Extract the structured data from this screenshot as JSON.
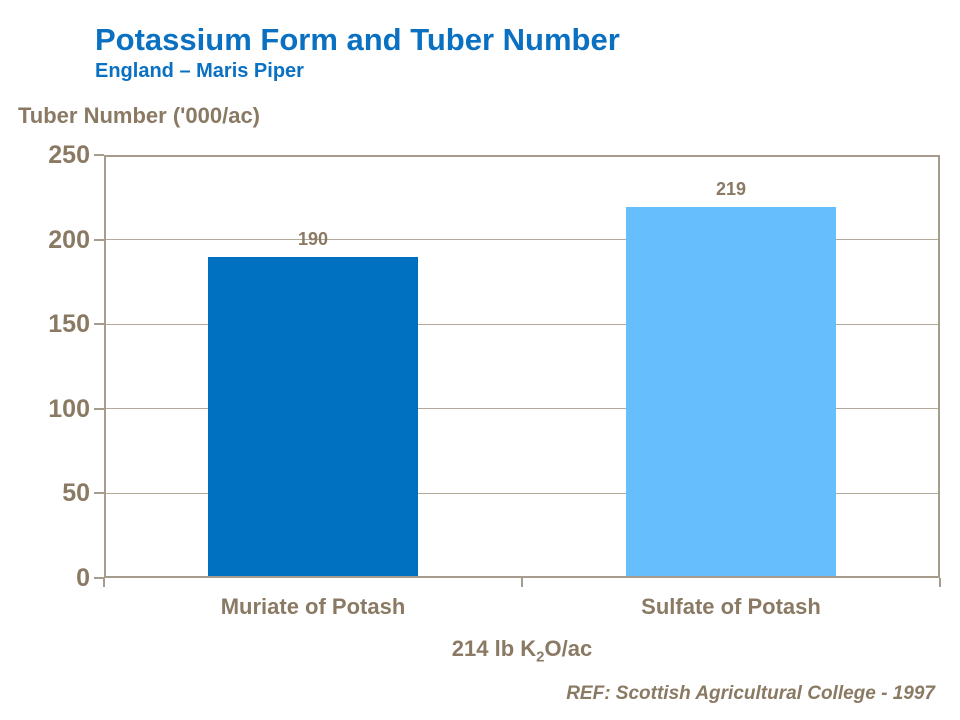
{
  "header": {
    "title": "Potassium Form and Tuber Number",
    "subtitle": "England – Maris Piper"
  },
  "chart_data": {
    "type": "bar",
    "title": "Potassium Form and Tuber Number",
    "subtitle": "England – Maris Piper",
    "ylabel": "Tuber Number ('000/ac)",
    "xlabel": "214 lb K2O/ac",
    "categories": [
      "Muriate of Potash",
      "Sulfate of Potash"
    ],
    "values": [
      190,
      219
    ],
    "bar_colors": [
      "#0070C0",
      "#66BEFC"
    ],
    "ylim": [
      0,
      250
    ],
    "yticks": [
      0,
      50,
      100,
      150,
      200,
      250
    ],
    "grid": true,
    "legend": false
  },
  "footnote": {
    "prefix": "214 lb K",
    "sub": "2",
    "suffix": "O/ac"
  },
  "reference": "REF: Scottish Agricultural College - 1997",
  "colors": {
    "title_blue": "#0A70C2",
    "chart_text_brown": "#8A7A64",
    "axis_line": "#A69B8C",
    "gridline": "#B3A99B"
  }
}
